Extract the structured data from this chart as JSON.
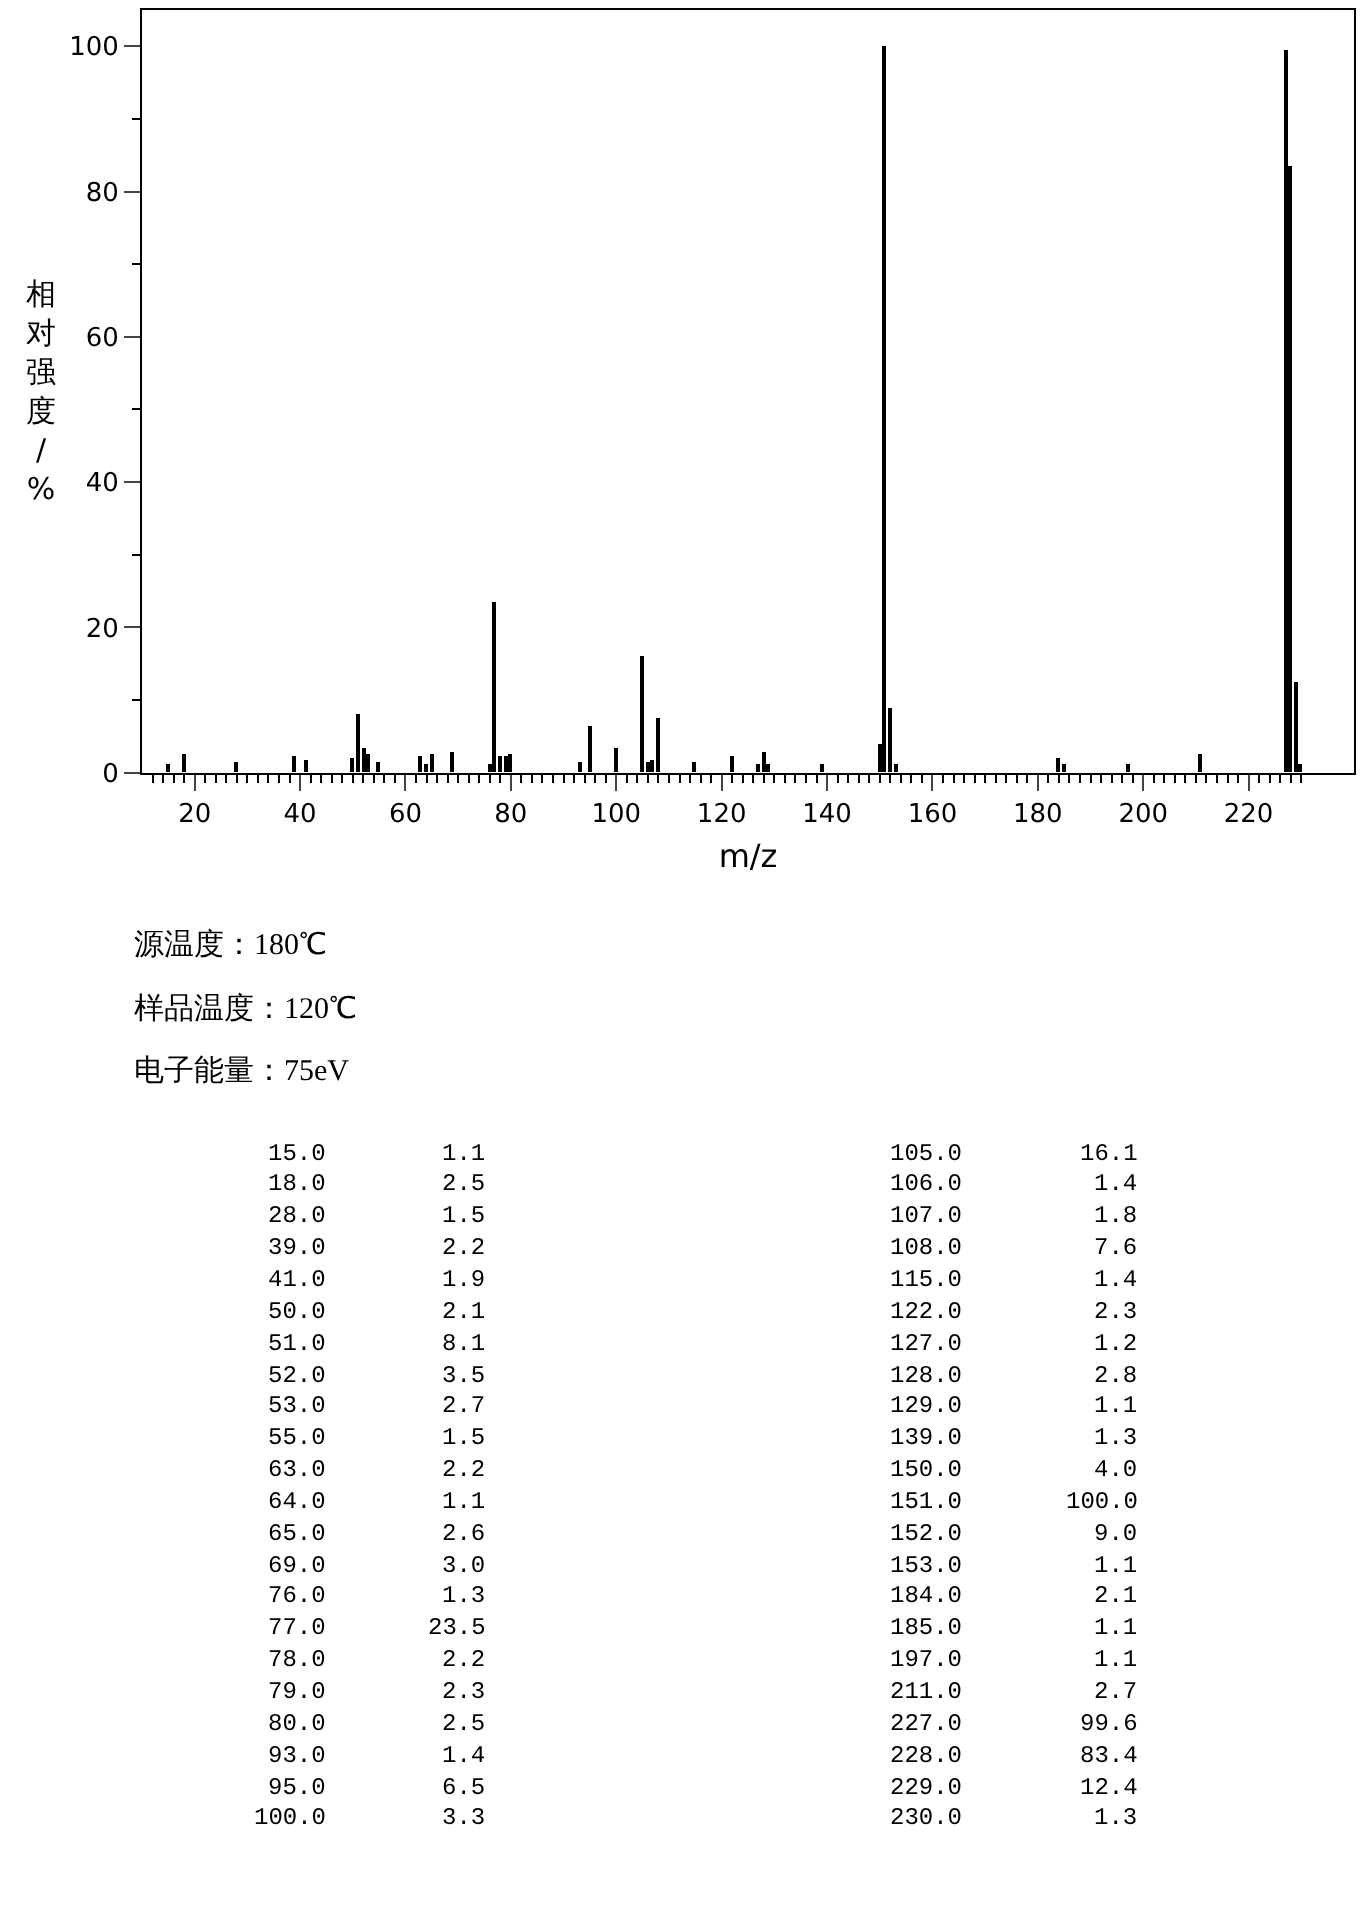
{
  "chart_data": [
    {
      "type": "bar",
      "xlabel": "m/z",
      "ylabel": "相对强度/%",
      "x": [
        15.0,
        18.0,
        28.0,
        39.0,
        41.0,
        50.0,
        51.0,
        52.0,
        53.0,
        55.0,
        63.0,
        64.0,
        65.0,
        69.0,
        76.0,
        77.0,
        78.0,
        79.0,
        80.0,
        93.0,
        95.0,
        100.0,
        105.0,
        106.0,
        107.0,
        108.0,
        115.0,
        122.0,
        127.0,
        128.0,
        129.0,
        139.0,
        150.0,
        151.0,
        152.0,
        153.0,
        184.0,
        185.0,
        197.0,
        211.0,
        227.0,
        228.0,
        229.0,
        230.0
      ],
      "values": [
        1.1,
        2.5,
        1.5,
        2.2,
        1.9,
        2.1,
        8.1,
        3.5,
        2.7,
        1.5,
        2.2,
        1.1,
        2.6,
        3.0,
        1.3,
        23.5,
        2.2,
        2.3,
        2.5,
        1.4,
        6.5,
        3.3,
        16.1,
        1.4,
        1.8,
        7.6,
        1.4,
        2.3,
        1.2,
        2.8,
        1.1,
        1.3,
        4.0,
        100.0,
        9.0,
        1.1,
        2.1,
        1.1,
        1.1,
        2.7,
        99.6,
        83.4,
        12.4,
        1.3
      ],
      "color": "#000000",
      "xlim": [
        10,
        240
      ],
      "ylim": [
        0,
        105
      ],
      "xticks": [
        {
          "value": 12,
          "label": null
        },
        {
          "value": 14,
          "label": null
        },
        {
          "value": 16,
          "label": null
        },
        {
          "value": 18,
          "label": null
        },
        20,
        {
          "value": 22,
          "label": null
        },
        {
          "value": 24,
          "label": null
        },
        {
          "value": 26,
          "label": null
        },
        {
          "value": 28,
          "label": null
        },
        {
          "value": 30,
          "label": null
        },
        {
          "value": 32,
          "label": null
        },
        {
          "value": 34,
          "label": null
        },
        {
          "value": 36,
          "label": null
        },
        {
          "value": 38,
          "label": null
        },
        40,
        {
          "value": 42,
          "label": null
        },
        {
          "value": 44,
          "label": null
        },
        {
          "value": 46,
          "label": null
        },
        {
          "value": 48,
          "label": null
        },
        {
          "value": 50,
          "label": null
        },
        {
          "value": 52,
          "label": null
        },
        {
          "value": 54,
          "label": null
        },
        {
          "value": 56,
          "label": null
        },
        {
          "value": 58,
          "label": null
        },
        60,
        {
          "value": 62,
          "label": null
        },
        {
          "value": 64,
          "label": null
        },
        {
          "value": 66,
          "label": null
        },
        {
          "value": 68,
          "label": null
        },
        {
          "value": 70,
          "label": null
        },
        {
          "value": 72,
          "label": null
        },
        {
          "value": 74,
          "label": null
        },
        {
          "value": 76,
          "label": null
        },
        {
          "value": 78,
          "label": null
        },
        80,
        {
          "value": 82,
          "label": null
        },
        {
          "value": 84,
          "label": null
        },
        {
          "value": 86,
          "label": null
        },
        {
          "value": 88,
          "label": null
        },
        {
          "value": 90,
          "label": null
        },
        {
          "value": 92,
          "label": null
        },
        {
          "value": 94,
          "label": null
        },
        {
          "value": 96,
          "label": null
        },
        {
          "value": 98,
          "label": null
        },
        100,
        {
          "value": 102,
          "label": null
        },
        {
          "value": 104,
          "label": null
        },
        {
          "value": 106,
          "label": null
        },
        {
          "value": 108,
          "label": null
        },
        {
          "value": 110,
          "label": null
        },
        {
          "value": 112,
          "label": null
        },
        {
          "value": 114,
          "label": null
        },
        {
          "value": 116,
          "label": null
        },
        {
          "value": 118,
          "label": null
        },
        120,
        {
          "value": 122,
          "label": null
        },
        {
          "value": 124,
          "label": null
        },
        {
          "value": 126,
          "label": null
        },
        {
          "value": 128,
          "label": null
        },
        {
          "value": 130,
          "label": null
        },
        {
          "value": 132,
          "label": null
        },
        {
          "value": 134,
          "label": null
        },
        {
          "value": 136,
          "label": null
        },
        {
          "value": 138,
          "label": null
        },
        140,
        {
          "value": 142,
          "label": null
        },
        {
          "value": 144,
          "label": null
        },
        {
          "value": 146,
          "label": null
        },
        {
          "value": 148,
          "label": null
        },
        {
          "value": 150,
          "label": null
        },
        {
          "value": 152,
          "label": null
        },
        {
          "value": 154,
          "label": null
        },
        {
          "value": 156,
          "label": null
        },
        {
          "value": 158,
          "label": null
        },
        160,
        {
          "value": 162,
          "label": null
        },
        {
          "value": 164,
          "label": null
        },
        {
          "value": 166,
          "label": null
        },
        {
          "value": 168,
          "label": null
        },
        {
          "value": 170,
          "label": null
        },
        {
          "value": 172,
          "label": null
        },
        {
          "value": 174,
          "label": null
        },
        {
          "value": 176,
          "label": null
        },
        {
          "value": 178,
          "label": null
        },
        180,
        {
          "value": 182,
          "label": null
        },
        {
          "value": 184,
          "label": null
        },
        {
          "value": 186,
          "label": null
        },
        {
          "value": 188,
          "label": null
        },
        {
          "value": 190,
          "label": null
        },
        {
          "value": 192,
          "label": null
        },
        {
          "value": 194,
          "label": null
        },
        {
          "value": 196,
          "label": null
        },
        {
          "value": 198,
          "label": null
        },
        200,
        {
          "value": 202,
          "label": null
        },
        {
          "value": 204,
          "label": null
        },
        {
          "value": 206,
          "label": null
        },
        {
          "value": 208,
          "label": null
        },
        {
          "value": 210,
          "label": null
        },
        {
          "value": 212,
          "label": null
        },
        {
          "value": 214,
          "label": null
        },
        {
          "value": 216,
          "label": null
        },
        {
          "value": 218,
          "label": null
        },
        220,
        {
          "value": 222,
          "label": null
        },
        {
          "value": 224,
          "label": null
        },
        {
          "value": 226,
          "label": null
        },
        {
          "value": 228,
          "label": null
        },
        {
          "value": 230,
          "label": null
        }
      ],
      "yticks": [
        0,
        {
          "value": 10,
          "label": null
        },
        20,
        {
          "value": 30,
          "label": null
        },
        40,
        {
          "value": 50,
          "label": null
        },
        60,
        {
          "value": 70,
          "label": null
        },
        80,
        {
          "value": 90,
          "label": null
        },
        100
      ],
      "annotations": [
        "源温度：180℃",
        "样品温度：120℃",
        "电子能量：75eV"
      ]
    },
    {
      "type": "other",
      "annotations": [
        "15.0",
        "1.1",
        "18.0",
        "2.5",
        "28.0",
        "1.5",
        "39.0",
        "2.2",
        "41.0",
        "1.9",
        "50.0",
        "2.1",
        "51.0",
        "8.1",
        "52.0",
        "3.5",
        "53.0",
        "2.7",
        "55.0",
        "1.5",
        "63.0",
        "2.2",
        "64.0",
        "1.1",
        "65.0",
        "2.6",
        "69.0",
        "3.0",
        "76.0",
        "1.3",
        "77.0",
        "23.5",
        "78.0",
        "2.2",
        "79.0",
        "2.3",
        "80.0",
        "2.5",
        "93.0",
        "1.4",
        "95.0",
        "6.5",
        "100.0",
        "3.3",
        "105.0",
        "16.1",
        "106.0",
        "1.4",
        "107.0",
        "1.8",
        "108.0",
        "7.6",
        "115.0",
        "1.4",
        "122.0",
        "2.3",
        "127.0",
        "1.2",
        "128.0",
        "2.8",
        "129.0",
        "1.1",
        "139.0",
        "1.3",
        "150.0",
        "4.0",
        "151.0",
        "100.0",
        "152.0",
        "9.0",
        "153.0",
        "1.1",
        "184.0",
        "2.1",
        "185.0",
        "1.1",
        "197.0",
        "1.1",
        "211.0",
        "2.7",
        "227.0",
        "99.6",
        "228.0",
        "83.4",
        "229.0",
        "12.4",
        "230.0",
        "1.3"
      ]
    }
  ]
}
